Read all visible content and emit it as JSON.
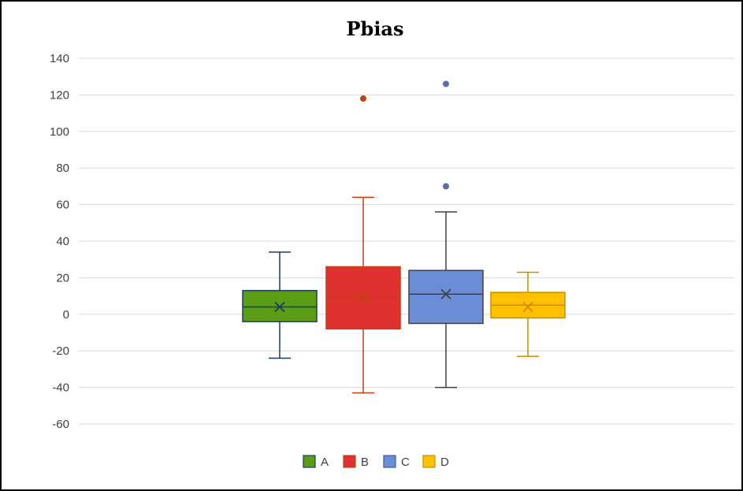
{
  "chart_data": {
    "type": "box",
    "title": "Pbias",
    "xlabel": "",
    "ylabel": "",
    "ylim": [
      -60,
      140
    ],
    "yticks": [
      140,
      120,
      100,
      80,
      60,
      40,
      20,
      0,
      -20,
      -40,
      -60
    ],
    "grid": true,
    "legend": "bottom",
    "series": [
      {
        "name": "A",
        "color": "#5a9e15",
        "edge": "#1f3864",
        "min": -24,
        "q1": -4,
        "median": 4,
        "q3": 13,
        "max": 34,
        "mean": 4,
        "outliers": []
      },
      {
        "name": "B",
        "color": "#e03131",
        "edge": "#c0400f",
        "min": -43,
        "q1": -8,
        "median": 9,
        "q3": 26,
        "max": 64,
        "mean": 9,
        "outliers": [
          118
        ]
      },
      {
        "name": "C",
        "color": "#6b8dd6",
        "edge": "#404040",
        "min": -40,
        "q1": -5,
        "median": 11,
        "q3": 24,
        "max": 56,
        "mean": 11,
        "outliers": [
          70,
          126
        ]
      },
      {
        "name": "D",
        "color": "#ffc000",
        "edge": "#c88f00",
        "min": -23,
        "q1": -2,
        "median": 5,
        "q3": 12,
        "max": 23,
        "mean": 4,
        "outliers": []
      }
    ]
  }
}
